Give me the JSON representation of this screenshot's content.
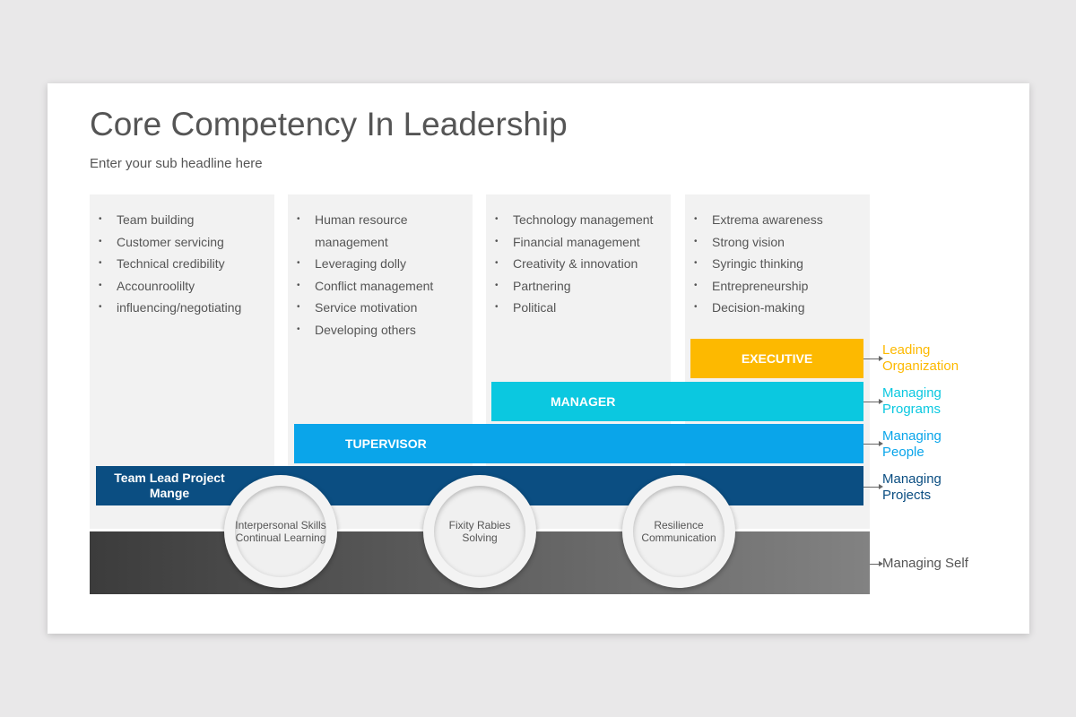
{
  "title": "Core Competency In Leadership",
  "subtitle": "Enter your sub headline here",
  "columns": [
    {
      "items": [
        "Team building",
        "Customer servicing",
        "Technical credibility",
        "Accounroolilty",
        "influencing/negotiating"
      ]
    },
    {
      "items": [
        "Human resource management",
        "Leveraging dolly",
        "Conflict management",
        "Service motivation",
        "Developing others"
      ]
    },
    {
      "items": [
        "Technology management",
        "Financial management",
        "Creativity & innovation",
        "Partnering",
        "Political"
      ]
    },
    {
      "items": [
        "Extrema awareness",
        "Strong vision",
        "Syringic thinking",
        "Entrepreneurship",
        "Decision-making"
      ]
    }
  ],
  "levels": [
    {
      "label": "EXECUTIVE",
      "outcome": "Leading Organization",
      "color": "#FDB900"
    },
    {
      "label": "MANAGER",
      "outcome": "Managing Programs",
      "color": "#0BC8E0"
    },
    {
      "label": "TUPERVISOR",
      "outcome": "Managing People",
      "color": "#0AA5EA"
    },
    {
      "label": "Team Lead Project Mange",
      "outcome": "Managing Projects",
      "color": "#0B4E82"
    }
  ],
  "base": {
    "outcome": "Managing Self"
  },
  "circles": [
    "Interpersonal Skills Continual Learning",
    "Fixity Rabies Solving",
    "Resilience Communication"
  ]
}
